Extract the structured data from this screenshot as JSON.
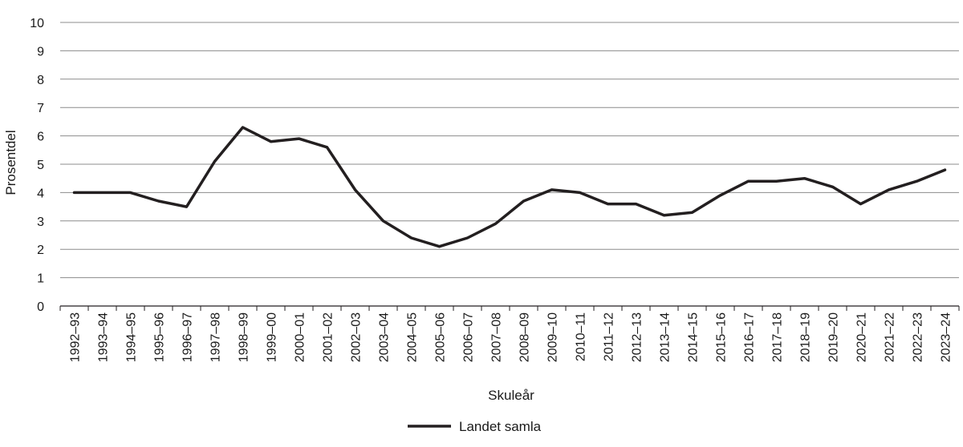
{
  "chart_data": {
    "type": "line",
    "xlabel": "Skuleår",
    "ylabel": "Prosentdel",
    "ylim": [
      0,
      10
    ],
    "yticks": [
      0,
      1,
      2,
      3,
      4,
      5,
      6,
      7,
      8,
      9,
      10
    ],
    "grid": true,
    "legend_position": "bottom",
    "categories": [
      "1992–93",
      "1993–94",
      "1994–95",
      "1995–96",
      "1996–97",
      "1997–98",
      "1998–99",
      "1999–00",
      "2000–01",
      "2001–02",
      "2002–03",
      "2003–04",
      "2004–05",
      "2005–06",
      "2006–07",
      "2007–08",
      "2008–09",
      "2009–10",
      "2010–11",
      "2011–12",
      "2012–13",
      "2013–14",
      "2014–15",
      "2015–16",
      "2016–17",
      "2017–18",
      "2018–19",
      "2019–20",
      "2020–21",
      "2021–22",
      "2022–23",
      "2023–24"
    ],
    "series": [
      {
        "name": "Landet samla",
        "color": "#231f20",
        "values": [
          4.0,
          4.0,
          4.0,
          3.7,
          3.5,
          5.1,
          6.3,
          5.8,
          5.9,
          5.6,
          4.1,
          3.0,
          2.4,
          2.1,
          2.4,
          2.9,
          3.7,
          4.1,
          4.0,
          3.6,
          3.6,
          3.2,
          3.3,
          3.9,
          4.4,
          4.4,
          4.5,
          4.2,
          3.6,
          4.1,
          4.4,
          4.8
        ]
      }
    ]
  }
}
